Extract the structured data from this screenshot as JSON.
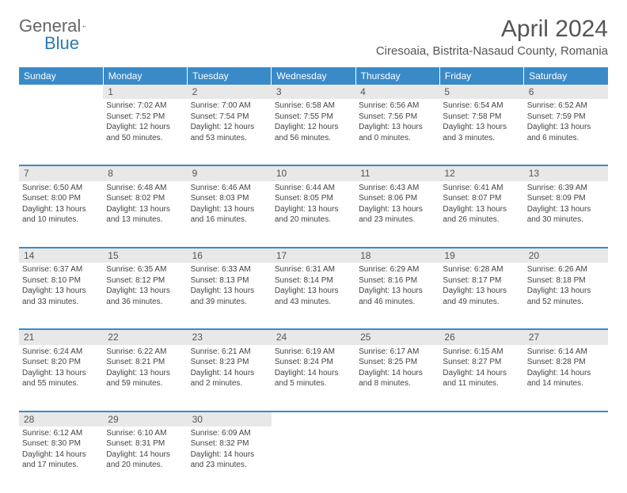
{
  "logo": {
    "general": "General",
    "blue": "Blue"
  },
  "title": "April 2024",
  "location": "Ciresoaia, Bistrita-Nasaud County, Romania",
  "day_headers": [
    "Sunday",
    "Monday",
    "Tuesday",
    "Wednesday",
    "Thursday",
    "Friday",
    "Saturday"
  ],
  "colors": {
    "header_bg": "#3a8ac8",
    "header_text": "#ffffff",
    "daynum_bg": "#e8e8e8",
    "daynum_text": "#555555",
    "cell_text": "#444444",
    "border": "#3a8ac8",
    "logo_general": "#666666",
    "logo_blue": "#2a7ab8",
    "title_color": "#555555"
  },
  "typography": {
    "title_fontsize": 30,
    "location_fontsize": 15,
    "header_fontsize": 12,
    "daynum_fontsize": 12,
    "cell_fontsize": 10
  },
  "weeks": [
    {
      "nums": [
        "",
        "1",
        "2",
        "3",
        "4",
        "5",
        "6"
      ],
      "cells": [
        [],
        [
          "Sunrise: 7:02 AM",
          "Sunset: 7:52 PM",
          "Daylight: 12 hours",
          "and 50 minutes."
        ],
        [
          "Sunrise: 7:00 AM",
          "Sunset: 7:54 PM",
          "Daylight: 12 hours",
          "and 53 minutes."
        ],
        [
          "Sunrise: 6:58 AM",
          "Sunset: 7:55 PM",
          "Daylight: 12 hours",
          "and 56 minutes."
        ],
        [
          "Sunrise: 6:56 AM",
          "Sunset: 7:56 PM",
          "Daylight: 13 hours",
          "and 0 minutes."
        ],
        [
          "Sunrise: 6:54 AM",
          "Sunset: 7:58 PM",
          "Daylight: 13 hours",
          "and 3 minutes."
        ],
        [
          "Sunrise: 6:52 AM",
          "Sunset: 7:59 PM",
          "Daylight: 13 hours",
          "and 6 minutes."
        ]
      ]
    },
    {
      "nums": [
        "7",
        "8",
        "9",
        "10",
        "11",
        "12",
        "13"
      ],
      "cells": [
        [
          "Sunrise: 6:50 AM",
          "Sunset: 8:00 PM",
          "Daylight: 13 hours",
          "and 10 minutes."
        ],
        [
          "Sunrise: 6:48 AM",
          "Sunset: 8:02 PM",
          "Daylight: 13 hours",
          "and 13 minutes."
        ],
        [
          "Sunrise: 6:46 AM",
          "Sunset: 8:03 PM",
          "Daylight: 13 hours",
          "and 16 minutes."
        ],
        [
          "Sunrise: 6:44 AM",
          "Sunset: 8:05 PM",
          "Daylight: 13 hours",
          "and 20 minutes."
        ],
        [
          "Sunrise: 6:43 AM",
          "Sunset: 8:06 PM",
          "Daylight: 13 hours",
          "and 23 minutes."
        ],
        [
          "Sunrise: 6:41 AM",
          "Sunset: 8:07 PM",
          "Daylight: 13 hours",
          "and 26 minutes."
        ],
        [
          "Sunrise: 6:39 AM",
          "Sunset: 8:09 PM",
          "Daylight: 13 hours",
          "and 30 minutes."
        ]
      ]
    },
    {
      "nums": [
        "14",
        "15",
        "16",
        "17",
        "18",
        "19",
        "20"
      ],
      "cells": [
        [
          "Sunrise: 6:37 AM",
          "Sunset: 8:10 PM",
          "Daylight: 13 hours",
          "and 33 minutes."
        ],
        [
          "Sunrise: 6:35 AM",
          "Sunset: 8:12 PM",
          "Daylight: 13 hours",
          "and 36 minutes."
        ],
        [
          "Sunrise: 6:33 AM",
          "Sunset: 8:13 PM",
          "Daylight: 13 hours",
          "and 39 minutes."
        ],
        [
          "Sunrise: 6:31 AM",
          "Sunset: 8:14 PM",
          "Daylight: 13 hours",
          "and 43 minutes."
        ],
        [
          "Sunrise: 6:29 AM",
          "Sunset: 8:16 PM",
          "Daylight: 13 hours",
          "and 46 minutes."
        ],
        [
          "Sunrise: 6:28 AM",
          "Sunset: 8:17 PM",
          "Daylight: 13 hours",
          "and 49 minutes."
        ],
        [
          "Sunrise: 6:26 AM",
          "Sunset: 8:18 PM",
          "Daylight: 13 hours",
          "and 52 minutes."
        ]
      ]
    },
    {
      "nums": [
        "21",
        "22",
        "23",
        "24",
        "25",
        "26",
        "27"
      ],
      "cells": [
        [
          "Sunrise: 6:24 AM",
          "Sunset: 8:20 PM",
          "Daylight: 13 hours",
          "and 55 minutes."
        ],
        [
          "Sunrise: 6:22 AM",
          "Sunset: 8:21 PM",
          "Daylight: 13 hours",
          "and 59 minutes."
        ],
        [
          "Sunrise: 6:21 AM",
          "Sunset: 8:23 PM",
          "Daylight: 14 hours",
          "and 2 minutes."
        ],
        [
          "Sunrise: 6:19 AM",
          "Sunset: 8:24 PM",
          "Daylight: 14 hours",
          "and 5 minutes."
        ],
        [
          "Sunrise: 6:17 AM",
          "Sunset: 8:25 PM",
          "Daylight: 14 hours",
          "and 8 minutes."
        ],
        [
          "Sunrise: 6:15 AM",
          "Sunset: 8:27 PM",
          "Daylight: 14 hours",
          "and 11 minutes."
        ],
        [
          "Sunrise: 6:14 AM",
          "Sunset: 8:28 PM",
          "Daylight: 14 hours",
          "and 14 minutes."
        ]
      ]
    },
    {
      "nums": [
        "28",
        "29",
        "30",
        "",
        "",
        "",
        ""
      ],
      "cells": [
        [
          "Sunrise: 6:12 AM",
          "Sunset: 8:30 PM",
          "Daylight: 14 hours",
          "and 17 minutes."
        ],
        [
          "Sunrise: 6:10 AM",
          "Sunset: 8:31 PM",
          "Daylight: 14 hours",
          "and 20 minutes."
        ],
        [
          "Sunrise: 6:09 AM",
          "Sunset: 8:32 PM",
          "Daylight: 14 hours",
          "and 23 minutes."
        ],
        [],
        [],
        [],
        []
      ]
    }
  ]
}
